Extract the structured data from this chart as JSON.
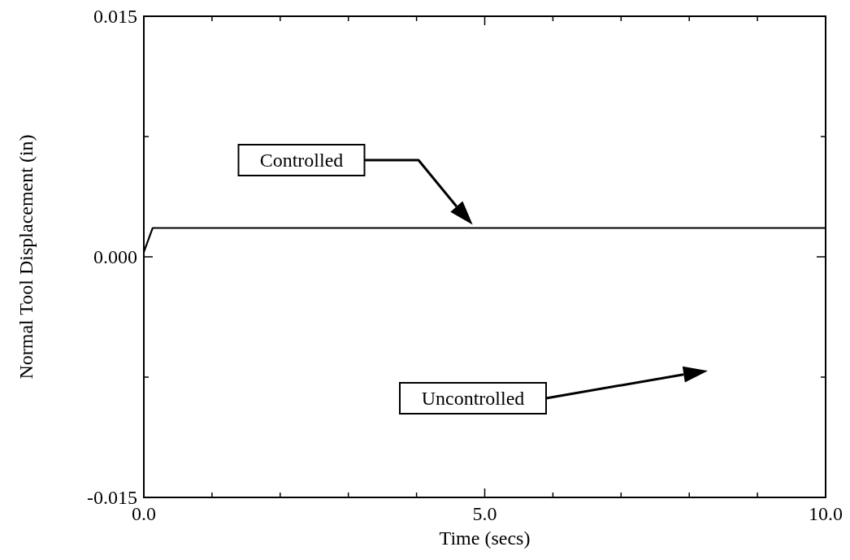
{
  "chart_data": {
    "type": "line",
    "xlabel": "Time (secs)",
    "ylabel": "Normal Tool Displacement (in)",
    "xlim": [
      0,
      10
    ],
    "ylim": [
      -0.015,
      0.015
    ],
    "xticks": [
      {
        "value": 0,
        "label": "0.0"
      },
      {
        "value": 1,
        "label": null
      },
      {
        "value": 2,
        "label": null
      },
      {
        "value": 3,
        "label": null
      },
      {
        "value": 4,
        "label": null
      },
      {
        "value": 5,
        "label": "5.0"
      },
      {
        "value": 6,
        "label": null
      },
      {
        "value": 7,
        "label": null
      },
      {
        "value": 8,
        "label": null
      },
      {
        "value": 9,
        "label": null
      },
      {
        "value": 10,
        "label": "10.0"
      }
    ],
    "yticks": [
      {
        "value": -0.015,
        "label": "-0.015"
      },
      {
        "value": -0.0075,
        "label": null
      },
      {
        "value": 0,
        "label": "0.000"
      },
      {
        "value": 0.0075,
        "label": null
      },
      {
        "value": 0.015,
        "label": "0.015"
      }
    ],
    "series": [
      {
        "color": "#000000",
        "x": [
          0,
          0.13,
          10
        ],
        "values": [
          0.0003,
          0.0018,
          0.0018
        ]
      }
    ],
    "annotations": [
      "Controlled",
      "Uncontrolled"
    ],
    "grid": false,
    "line_style": "solid",
    "marker": "none"
  }
}
